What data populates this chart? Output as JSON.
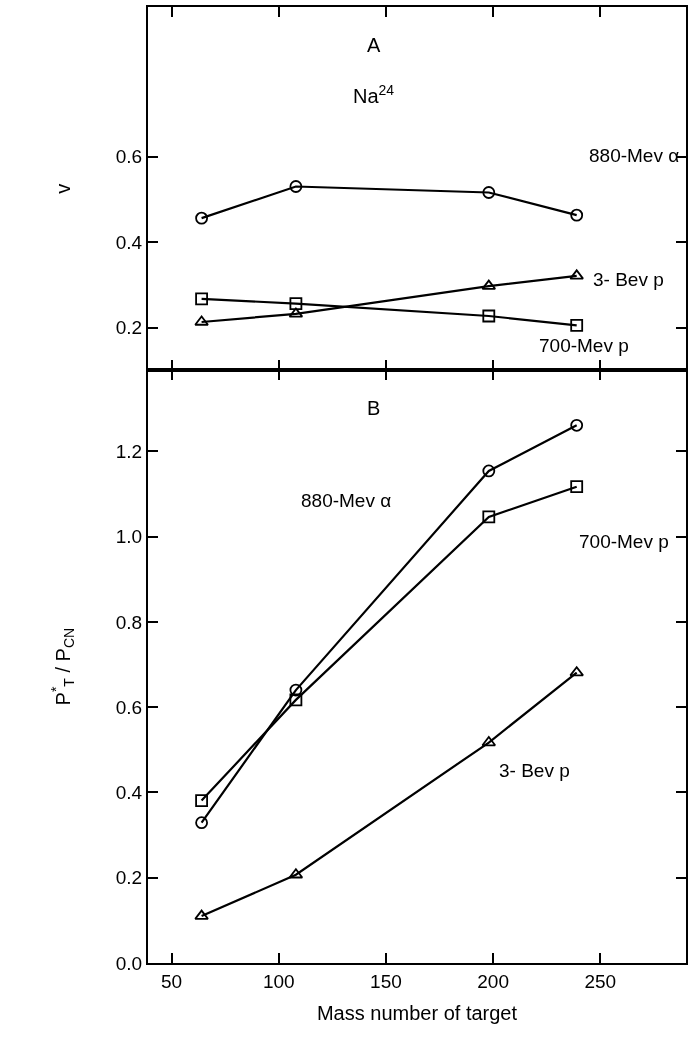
{
  "chart_data": [
    {
      "type": "line",
      "ylabel": "v",
      "annotations": [
        "A",
        "Na$^{24}$"
      ],
      "x": [
        64,
        108,
        198,
        239
      ],
      "xlim": [
        39,
        290
      ],
      "xticks": [
        50,
        100,
        150,
        200,
        250
      ],
      "ylim": [
        0.1,
        0.95
      ],
      "yticks": [
        0.2,
        0.4,
        0.6
      ],
      "tick_labels": "y",
      "series": [
        {
          "name": "880-Mev α",
          "color": "#000000",
          "marker": "circle",
          "values": [
            0.456,
            0.53,
            0.516,
            0.463
          ]
        },
        {
          "name": "3- Bev p",
          "color": "#000000",
          "marker": "triangle",
          "values": [
            0.213,
            0.232,
            0.297,
            0.321
          ]
        },
        {
          "name": "700-Mev p",
          "color": "#000000",
          "marker": "square",
          "values": [
            0.267,
            0.256,
            0.227,
            0.205
          ]
        }
      ]
    },
    {
      "type": "line",
      "ylabel": "P$^{*}$$_{T}$ / P$_{CN}$",
      "xlabel": "Mass number of target",
      "annotations": [
        "B"
      ],
      "x": [
        64,
        108,
        198,
        239
      ],
      "xlim": [
        39,
        290
      ],
      "xticks": [
        50,
        100,
        150,
        200,
        250
      ],
      "ylim": [
        0,
        1.39
      ],
      "yticks": [
        {
          "value": 0,
          "label": "0.0"
        },
        0.2,
        0.4,
        0.6,
        0.8,
        {
          "value": 1,
          "label": "1.0"
        },
        1.2
      ],
      "series": [
        {
          "name": "880-Mev α",
          "color": "#000000",
          "marker": "circle",
          "values": [
            0.329,
            0.64,
            1.154,
            1.261
          ]
        },
        {
          "name": "700-Mev p",
          "color": "#000000",
          "marker": "square",
          "values": [
            0.381,
            0.617,
            1.046,
            1.117
          ]
        },
        {
          "name": "3- Bev p",
          "color": "#000000",
          "marker": "triangle",
          "values": [
            0.11,
            0.207,
            0.517,
            0.681
          ]
        }
      ]
    }
  ]
}
